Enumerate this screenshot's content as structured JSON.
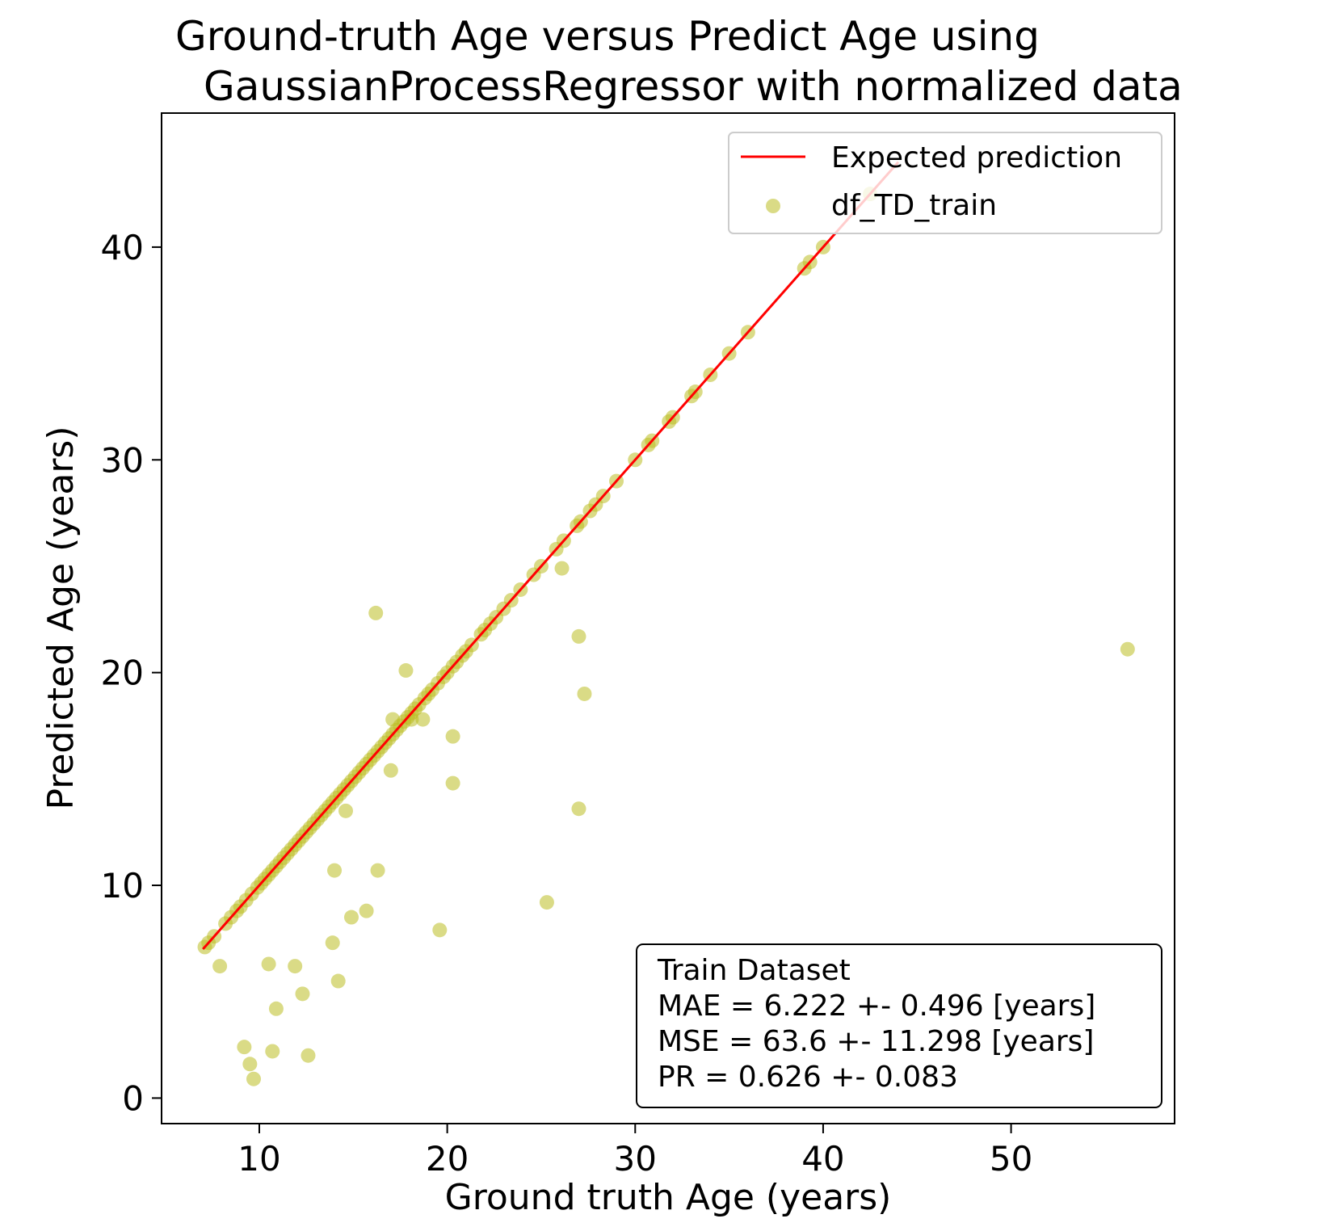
{
  "chart_data": {
    "type": "scatter",
    "title": [
      "Ground-truth Age versus Predict Age using",
      "GaussianProcessRegressor  with normalized data"
    ],
    "xlabel": "Ground truth Age (years)",
    "ylabel": "Predicted Age (years)",
    "xlim": [
      4.8,
      58.7
    ],
    "ylim": [
      -1.2,
      46.3
    ],
    "xticks": [
      10,
      20,
      30,
      40,
      50
    ],
    "yticks": [
      0,
      10,
      20,
      30,
      40
    ],
    "grid": false,
    "legend": {
      "placement": "top-right",
      "entries": [
        {
          "label": "Expected prediction",
          "kind": "line",
          "color": "#ff0000"
        },
        {
          "label": "df_TD_train",
          "kind": "marker",
          "color": "#bcbd22"
        }
      ]
    },
    "reference_line": {
      "name": "Expected prediction",
      "color": "#ff0000",
      "x": [
        7.0,
        44.0
      ],
      "y": [
        7.0,
        44.0
      ]
    },
    "scatter": {
      "name": "df_TD_train",
      "color": "#bcbd22",
      "alpha": 0.55,
      "points": [
        [
          7.1,
          7.1
        ],
        [
          7.3,
          7.3
        ],
        [
          7.6,
          7.6
        ],
        [
          7.9,
          6.2
        ],
        [
          8.2,
          8.2
        ],
        [
          8.5,
          8.5
        ],
        [
          8.8,
          8.8
        ],
        [
          9.0,
          9.0
        ],
        [
          9.2,
          2.4
        ],
        [
          9.3,
          9.3
        ],
        [
          9.5,
          1.6
        ],
        [
          9.6,
          9.6
        ],
        [
          9.7,
          0.9
        ],
        [
          9.9,
          9.9
        ],
        [
          10.1,
          10.1
        ],
        [
          10.3,
          10.3
        ],
        [
          10.5,
          6.3
        ],
        [
          10.5,
          10.5
        ],
        [
          10.7,
          2.2
        ],
        [
          10.7,
          10.7
        ],
        [
          10.9,
          4.2
        ],
        [
          10.9,
          10.9
        ],
        [
          11.1,
          11.1
        ],
        [
          11.3,
          11.3
        ],
        [
          11.5,
          11.5
        ],
        [
          11.7,
          11.7
        ],
        [
          11.9,
          6.2
        ],
        [
          11.9,
          11.9
        ],
        [
          12.1,
          12.1
        ],
        [
          12.3,
          4.9
        ],
        [
          12.3,
          12.3
        ],
        [
          12.5,
          12.5
        ],
        [
          12.6,
          2.0
        ],
        [
          12.7,
          12.7
        ],
        [
          12.9,
          12.9
        ],
        [
          13.1,
          13.1
        ],
        [
          13.3,
          13.3
        ],
        [
          13.5,
          13.5
        ],
        [
          13.7,
          13.7
        ],
        [
          13.9,
          7.3
        ],
        [
          13.9,
          13.9
        ],
        [
          14.0,
          10.7
        ],
        [
          14.1,
          14.1
        ],
        [
          14.2,
          5.5
        ],
        [
          14.3,
          14.3
        ],
        [
          14.5,
          14.5
        ],
        [
          14.6,
          13.5
        ],
        [
          14.7,
          14.7
        ],
        [
          14.9,
          8.5
        ],
        [
          14.9,
          14.9
        ],
        [
          15.1,
          15.1
        ],
        [
          15.3,
          15.3
        ],
        [
          15.5,
          15.5
        ],
        [
          15.7,
          8.8
        ],
        [
          15.7,
          15.7
        ],
        [
          15.9,
          15.9
        ],
        [
          16.1,
          16.1
        ],
        [
          16.2,
          22.8
        ],
        [
          16.3,
          10.7
        ],
        [
          16.3,
          16.3
        ],
        [
          16.5,
          16.5
        ],
        [
          16.7,
          16.7
        ],
        [
          16.9,
          16.9
        ],
        [
          17.0,
          15.4
        ],
        [
          17.1,
          17.1
        ],
        [
          17.1,
          17.8
        ],
        [
          17.3,
          17.3
        ],
        [
          17.5,
          17.5
        ],
        [
          17.7,
          17.7
        ],
        [
          17.8,
          20.1
        ],
        [
          17.9,
          17.9
        ],
        [
          18.1,
          17.8
        ],
        [
          18.1,
          18.1
        ],
        [
          18.3,
          18.3
        ],
        [
          18.5,
          18.5
        ],
        [
          18.7,
          17.8
        ],
        [
          18.8,
          18.8
        ],
        [
          19.0,
          19.0
        ],
        [
          19.2,
          19.2
        ],
        [
          19.5,
          19.5
        ],
        [
          19.6,
          7.9
        ],
        [
          19.8,
          19.8
        ],
        [
          20.0,
          20.0
        ],
        [
          20.3,
          17.0
        ],
        [
          20.3,
          20.3
        ],
        [
          20.3,
          14.8
        ],
        [
          20.5,
          20.5
        ],
        [
          20.8,
          20.8
        ],
        [
          21.0,
          21.0
        ],
        [
          21.3,
          21.3
        ],
        [
          21.8,
          21.8
        ],
        [
          22.0,
          22.0
        ],
        [
          22.3,
          22.3
        ],
        [
          22.6,
          22.6
        ],
        [
          23.0,
          23.0
        ],
        [
          23.4,
          23.4
        ],
        [
          23.9,
          23.9
        ],
        [
          24.6,
          24.6
        ],
        [
          25.0,
          25.0
        ],
        [
          25.3,
          9.2
        ],
        [
          25.8,
          25.8
        ],
        [
          26.1,
          24.9
        ],
        [
          26.2,
          26.2
        ],
        [
          26.9,
          26.9
        ],
        [
          27.0,
          21.7
        ],
        [
          27.0,
          13.6
        ],
        [
          27.1,
          27.1
        ],
        [
          27.3,
          19.0
        ],
        [
          27.6,
          27.6
        ],
        [
          27.9,
          27.9
        ],
        [
          28.3,
          28.3
        ],
        [
          29.0,
          29.0
        ],
        [
          30.0,
          30.0
        ],
        [
          30.7,
          30.7
        ],
        [
          30.9,
          30.9
        ],
        [
          31.8,
          31.8
        ],
        [
          32.0,
          32.0
        ],
        [
          33.0,
          33.0
        ],
        [
          33.2,
          33.2
        ],
        [
          34.0,
          34.0
        ],
        [
          35.0,
          35.0
        ],
        [
          36.0,
          36.0
        ],
        [
          39.0,
          39.0
        ],
        [
          39.3,
          39.3
        ],
        [
          40.0,
          40.0
        ],
        [
          42.5,
          42.5
        ],
        [
          56.2,
          21.1
        ]
      ]
    },
    "annotation": {
      "placement": "bottom-right",
      "lines": [
        "Train Dataset",
        "MAE = 6.222 +- 0.496 [years]",
        "MSE = 63.6 +- 11.298 [years]",
        "PR = 0.626 +- 0.083"
      ]
    }
  }
}
